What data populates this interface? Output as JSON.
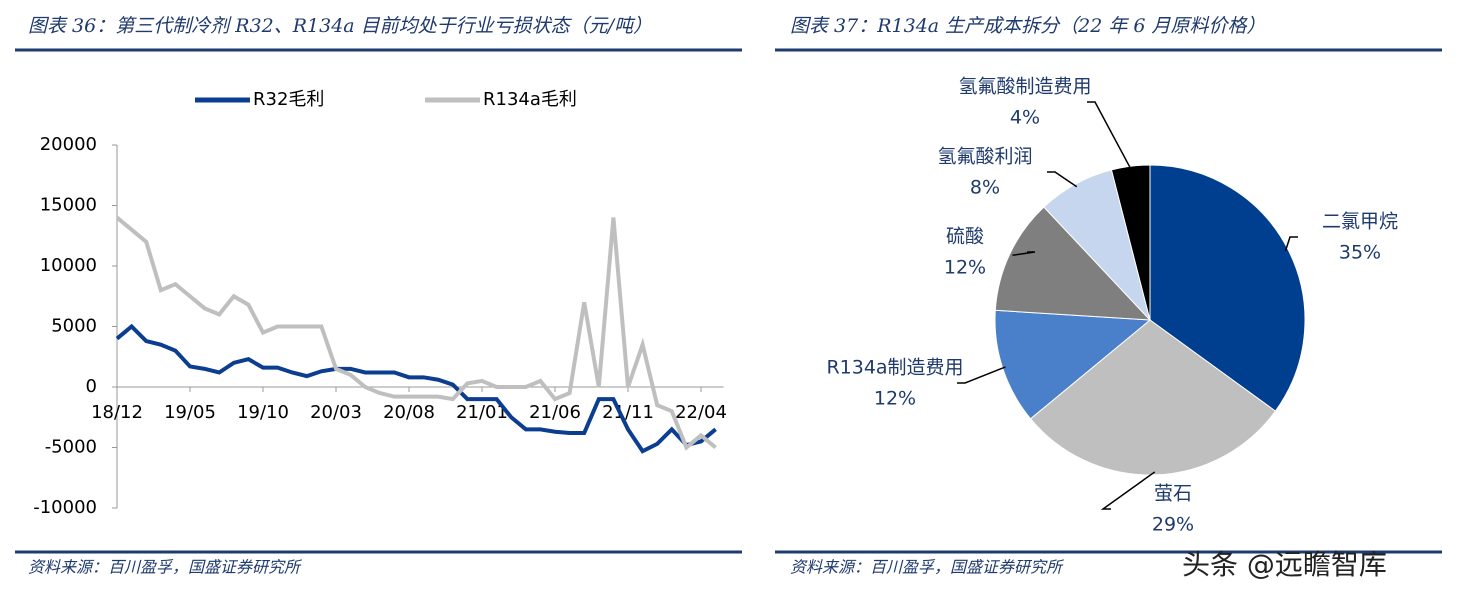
{
  "chart_data": [
    {
      "type": "line",
      "title": "图表 36：第三代制冷剂 R32、R134a 目前均处于行业亏损状态（元/吨）",
      "source": "资料来源：百川盈孚，国盛证券研究所",
      "categories": [
        "18/12",
        null,
        null,
        null,
        null,
        "19/05",
        null,
        null,
        null,
        null,
        "19/10",
        null,
        null,
        null,
        null,
        "20/03",
        null,
        null,
        null,
        null,
        "20/08",
        null,
        null,
        null,
        null,
        "21/01",
        null,
        null,
        null,
        null,
        "21/06",
        null,
        null,
        null,
        null,
        "21/11",
        null,
        null,
        null,
        null,
        "22/04",
        null
      ],
      "series": [
        {
          "name": "R32毛利",
          "color": "#0b3d91",
          "values": [
            4000,
            5000,
            3800,
            3500,
            3000,
            1700,
            1500,
            1200,
            2000,
            2300,
            1600,
            1600,
            1200,
            900,
            1300,
            1500,
            1500,
            1200,
            1200,
            1200,
            800,
            800,
            600,
            200,
            -1000,
            -1000,
            -1000,
            -2500,
            -3500,
            -3500,
            -3700,
            -3800,
            -3800,
            -1000,
            -1000,
            -3500,
            -5300,
            -4700,
            -3500,
            -4800,
            -4500,
            -3500
          ]
        },
        {
          "name": "R134a毛利",
          "color": "#bfbfbf",
          "values": [
            14000,
            13000,
            12000,
            8000,
            8500,
            7500,
            6500,
            6000,
            7500,
            6800,
            4500,
            5000,
            5000,
            5000,
            5000,
            1500,
            1000,
            0,
            -500,
            -800,
            -800,
            -800,
            -800,
            -1000,
            300,
            500,
            0,
            0,
            0,
            500,
            -1000,
            -500,
            7000,
            0,
            14000,
            0,
            3500,
            -1500,
            -2000,
            -5000,
            -4000,
            -5000
          ]
        }
      ],
      "ylim": [
        -10000,
        20000
      ],
      "yticks": [
        -10000,
        -5000,
        0,
        5000,
        10000,
        15000,
        20000
      ],
      "legend": "top"
    },
    {
      "type": "pie",
      "title": "图表 37：R134a 生产成本拆分（22 年 6 月原料价格）",
      "source": "资料来源：百川盈孚，国盛证券研究所",
      "categories": [
        "二氯甲烷",
        "萤石",
        "R134a制造费用",
        "硫酸",
        "氢氟酸利润",
        "氢氟酸制造费用"
      ],
      "values": [
        35,
        29,
        12,
        12,
        8,
        4
      ],
      "value_labels": [
        "35%",
        "29%",
        "12%",
        "12%",
        "8%",
        "4%"
      ],
      "colors": [
        "#003f8f",
        "#bfbfbf",
        "#4a7fc9",
        "#7f7f7f",
        "#c6d6ee",
        "#000000"
      ]
    }
  ],
  "watermark": "头条 @远瞻智库"
}
